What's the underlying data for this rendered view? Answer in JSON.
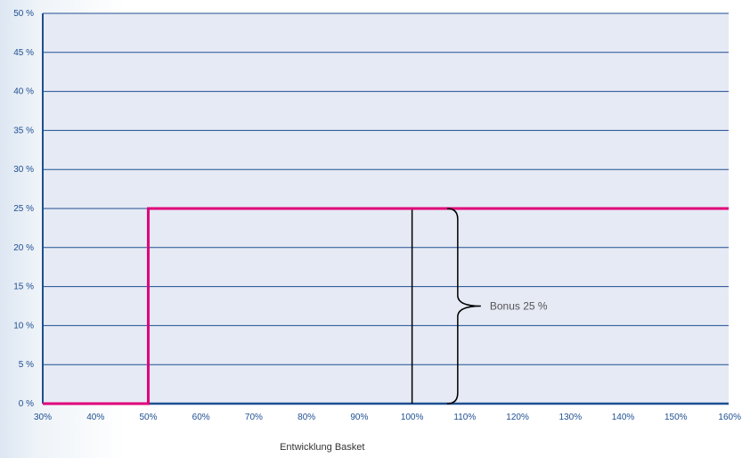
{
  "chart_data": {
    "type": "line",
    "title": "",
    "xlabel": "Entwicklung Basket",
    "ylabel": "",
    "x_ticks": [
      "30%",
      "40%",
      "50%",
      "60%",
      "70%",
      "80%",
      "90%",
      "100%",
      "110%",
      "120%",
      "130%",
      "140%",
      "150%",
      "160%"
    ],
    "y_ticks": [
      "0 %",
      "5 %",
      "10 %",
      "15 %",
      "20 %",
      "25 %",
      "30 %",
      "35 %",
      "40 %",
      "45 %",
      "50 %"
    ],
    "xlim": [
      30,
      160
    ],
    "ylim": [
      0,
      50
    ],
    "grid": true,
    "series": [
      {
        "color": "#e0007a",
        "points": [
          [
            30,
            0
          ],
          [
            50,
            0
          ],
          [
            50,
            25
          ],
          [
            160,
            25
          ]
        ]
      }
    ],
    "reference_line": {
      "x": 100,
      "y_range": [
        0,
        25
      ],
      "color": "#000000"
    },
    "annotation": {
      "text": "Bonus 25 %",
      "brace_x": 110,
      "y_range": [
        0,
        25
      ]
    },
    "colors": {
      "plot_background": "#e6eaf4",
      "axis": "#1d4f91",
      "grid": "#1d4f91"
    }
  }
}
